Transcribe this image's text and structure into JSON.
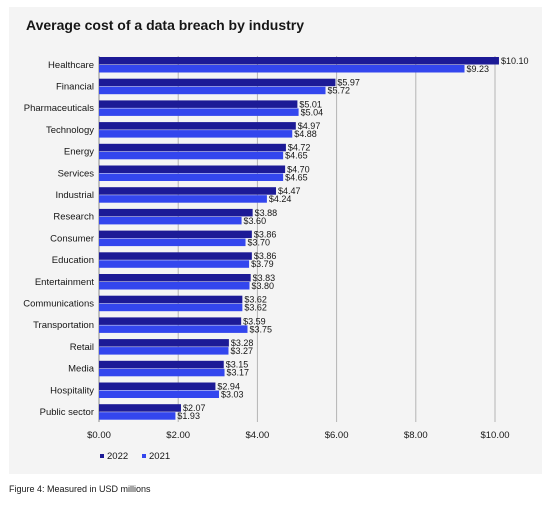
{
  "figure_caption": "Figure 4: Measured in USD millions",
  "chart_data": {
    "type": "bar",
    "orientation": "horizontal",
    "title": "Average cost of a data breach by industry",
    "categories": [
      "Healthcare",
      "Financial",
      "Pharmaceuticals",
      "Technology",
      "Energy",
      "Services",
      "Industrial",
      "Research",
      "Consumer",
      "Education",
      "Entertainment",
      "Communications",
      "Transportation",
      "Retail",
      "Media",
      "Hospitality",
      "Public sector"
    ],
    "series": [
      {
        "name": "2022",
        "color": "#1c1a96",
        "values": [
          10.1,
          5.97,
          5.01,
          4.97,
          4.72,
          4.7,
          4.47,
          3.88,
          3.86,
          3.86,
          3.83,
          3.62,
          3.59,
          3.28,
          3.15,
          2.94,
          2.07
        ],
        "labels": [
          "$10.10",
          "$5.97",
          "$5.01",
          "$4.97",
          "$4.72",
          "$4.70",
          "$4.47",
          "$3.88",
          "$3.86",
          "$3.86",
          "$3.83",
          "$3.62",
          "$3.59",
          "$3.28",
          "$3.15",
          "$2.94",
          "$2.07"
        ]
      },
      {
        "name": "2021",
        "color": "#3346ee",
        "values": [
          9.23,
          5.72,
          5.04,
          4.88,
          4.65,
          4.65,
          4.24,
          3.6,
          3.7,
          3.79,
          3.8,
          3.62,
          3.75,
          3.27,
          3.17,
          3.03,
          1.93
        ],
        "labels": [
          "$9.23",
          "$5.72",
          "$5.04",
          "$4.88",
          "$4.65",
          "$4.65",
          "$4.24",
          "$3.60",
          "$3.70",
          "$3.79",
          "$3.80",
          "$3.62",
          "$3.75",
          "$3.27",
          "$3.17",
          "$3.03",
          "$1.93"
        ]
      }
    ],
    "xlim": [
      0,
      10
    ],
    "xticks": [
      0,
      2,
      4,
      6,
      8,
      10
    ],
    "xtick_labels": [
      "$0.00",
      "$2.00",
      "$4.00",
      "$6.00",
      "$8.00",
      "$10.00"
    ],
    "grid": "vertical",
    "legend_placement": "bottom-left"
  }
}
